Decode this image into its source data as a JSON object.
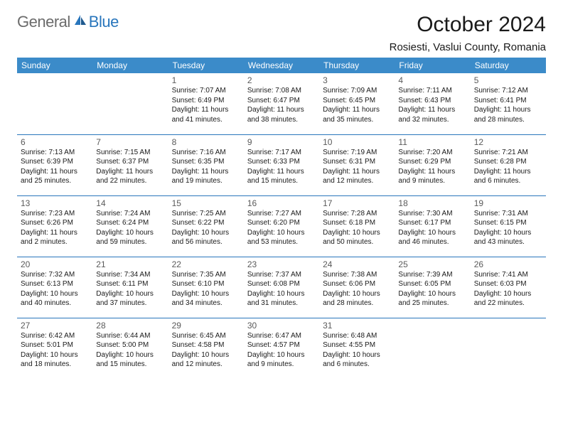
{
  "logo": {
    "general": "General",
    "blue": "Blue"
  },
  "title": "October 2024",
  "location": "Rosiesti, Vaslui County, Romania",
  "colors": {
    "header_bg": "#3b8bc9",
    "header_text": "#ffffff",
    "border": "#2976bc",
    "logo_gray": "#6b6b6b",
    "logo_blue": "#2976bc",
    "text": "#1a1a1a",
    "daynum": "#5a5a5a"
  },
  "daynames": [
    "Sunday",
    "Monday",
    "Tuesday",
    "Wednesday",
    "Thursday",
    "Friday",
    "Saturday"
  ],
  "weeks": [
    [
      null,
      null,
      {
        "n": "1",
        "sr": "7:07 AM",
        "ss": "6:49 PM",
        "dl": "11 hours and 41 minutes."
      },
      {
        "n": "2",
        "sr": "7:08 AM",
        "ss": "6:47 PM",
        "dl": "11 hours and 38 minutes."
      },
      {
        "n": "3",
        "sr": "7:09 AM",
        "ss": "6:45 PM",
        "dl": "11 hours and 35 minutes."
      },
      {
        "n": "4",
        "sr": "7:11 AM",
        "ss": "6:43 PM",
        "dl": "11 hours and 32 minutes."
      },
      {
        "n": "5",
        "sr": "7:12 AM",
        "ss": "6:41 PM",
        "dl": "11 hours and 28 minutes."
      }
    ],
    [
      {
        "n": "6",
        "sr": "7:13 AM",
        "ss": "6:39 PM",
        "dl": "11 hours and 25 minutes."
      },
      {
        "n": "7",
        "sr": "7:15 AM",
        "ss": "6:37 PM",
        "dl": "11 hours and 22 minutes."
      },
      {
        "n": "8",
        "sr": "7:16 AM",
        "ss": "6:35 PM",
        "dl": "11 hours and 19 minutes."
      },
      {
        "n": "9",
        "sr": "7:17 AM",
        "ss": "6:33 PM",
        "dl": "11 hours and 15 minutes."
      },
      {
        "n": "10",
        "sr": "7:19 AM",
        "ss": "6:31 PM",
        "dl": "11 hours and 12 minutes."
      },
      {
        "n": "11",
        "sr": "7:20 AM",
        "ss": "6:29 PM",
        "dl": "11 hours and 9 minutes."
      },
      {
        "n": "12",
        "sr": "7:21 AM",
        "ss": "6:28 PM",
        "dl": "11 hours and 6 minutes."
      }
    ],
    [
      {
        "n": "13",
        "sr": "7:23 AM",
        "ss": "6:26 PM",
        "dl": "11 hours and 2 minutes."
      },
      {
        "n": "14",
        "sr": "7:24 AM",
        "ss": "6:24 PM",
        "dl": "10 hours and 59 minutes."
      },
      {
        "n": "15",
        "sr": "7:25 AM",
        "ss": "6:22 PM",
        "dl": "10 hours and 56 minutes."
      },
      {
        "n": "16",
        "sr": "7:27 AM",
        "ss": "6:20 PM",
        "dl": "10 hours and 53 minutes."
      },
      {
        "n": "17",
        "sr": "7:28 AM",
        "ss": "6:18 PM",
        "dl": "10 hours and 50 minutes."
      },
      {
        "n": "18",
        "sr": "7:30 AM",
        "ss": "6:17 PM",
        "dl": "10 hours and 46 minutes."
      },
      {
        "n": "19",
        "sr": "7:31 AM",
        "ss": "6:15 PM",
        "dl": "10 hours and 43 minutes."
      }
    ],
    [
      {
        "n": "20",
        "sr": "7:32 AM",
        "ss": "6:13 PM",
        "dl": "10 hours and 40 minutes."
      },
      {
        "n": "21",
        "sr": "7:34 AM",
        "ss": "6:11 PM",
        "dl": "10 hours and 37 minutes."
      },
      {
        "n": "22",
        "sr": "7:35 AM",
        "ss": "6:10 PM",
        "dl": "10 hours and 34 minutes."
      },
      {
        "n": "23",
        "sr": "7:37 AM",
        "ss": "6:08 PM",
        "dl": "10 hours and 31 minutes."
      },
      {
        "n": "24",
        "sr": "7:38 AM",
        "ss": "6:06 PM",
        "dl": "10 hours and 28 minutes."
      },
      {
        "n": "25",
        "sr": "7:39 AM",
        "ss": "6:05 PM",
        "dl": "10 hours and 25 minutes."
      },
      {
        "n": "26",
        "sr": "7:41 AM",
        "ss": "6:03 PM",
        "dl": "10 hours and 22 minutes."
      }
    ],
    [
      {
        "n": "27",
        "sr": "6:42 AM",
        "ss": "5:01 PM",
        "dl": "10 hours and 18 minutes."
      },
      {
        "n": "28",
        "sr": "6:44 AM",
        "ss": "5:00 PM",
        "dl": "10 hours and 15 minutes."
      },
      {
        "n": "29",
        "sr": "6:45 AM",
        "ss": "4:58 PM",
        "dl": "10 hours and 12 minutes."
      },
      {
        "n": "30",
        "sr": "6:47 AM",
        "ss": "4:57 PM",
        "dl": "10 hours and 9 minutes."
      },
      {
        "n": "31",
        "sr": "6:48 AM",
        "ss": "4:55 PM",
        "dl": "10 hours and 6 minutes."
      },
      null,
      null
    ]
  ],
  "labels": {
    "sunrise": "Sunrise: ",
    "sunset": "Sunset: ",
    "daylight": "Daylight: "
  }
}
